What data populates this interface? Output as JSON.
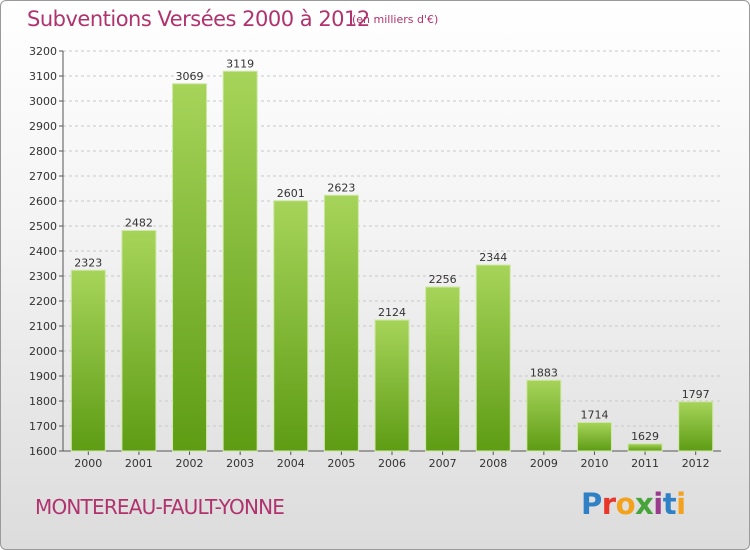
{
  "header": {
    "title": "Subventions Versées 2000 à 2012",
    "subtitle": "(en milliers d'€)"
  },
  "footer": {
    "commune": "MONTEREAU-FAULT-YONNE",
    "logo_letters": [
      "P",
      "r",
      "o",
      "x",
      "i",
      "t",
      "i"
    ]
  },
  "colors": {
    "title": "#b0336e",
    "bar_top": "#a6d45a",
    "bar_bottom": "#5e9c14",
    "grid": "#c8c8c8"
  },
  "chart_data": {
    "type": "bar",
    "title": "Subventions Versées 2000 à 2012",
    "subtitle": "(en milliers d'€)",
    "categories": [
      "2000",
      "2001",
      "2002",
      "2003",
      "2004",
      "2005",
      "2006",
      "2007",
      "2008",
      "2009",
      "2010",
      "2011",
      "2012"
    ],
    "values": [
      2323,
      2482,
      3069,
      3119,
      2601,
      2623,
      2124,
      2256,
      2344,
      1883,
      1714,
      1629,
      1797
    ],
    "ylim": [
      1600,
      3200
    ],
    "yticks": [
      1600,
      1700,
      1800,
      1900,
      2000,
      2100,
      2200,
      2300,
      2400,
      2500,
      2600,
      2700,
      2800,
      2900,
      3000,
      3100,
      3200
    ],
    "grid": true,
    "data_labels": true
  }
}
